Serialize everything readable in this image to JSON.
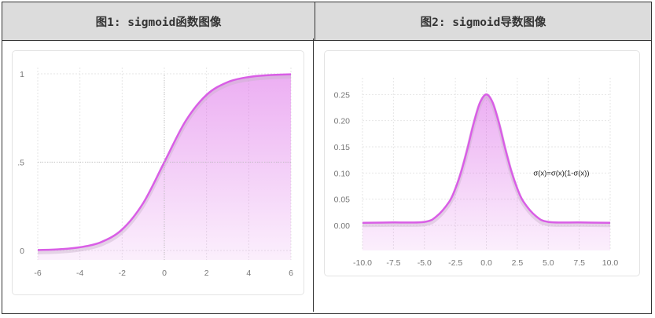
{
  "headers": {
    "left": "图1: sigmoid函数图像",
    "right": "图2: sigmoid导数图像"
  },
  "chart_data": [
    {
      "type": "area",
      "title": "图1: sigmoid函数图像",
      "x": [
        -6,
        -5,
        -4,
        -3,
        -2,
        -1,
        0,
        1,
        2,
        3,
        4,
        5,
        6
      ],
      "y": [
        0.0025,
        0.0067,
        0.018,
        0.047,
        0.119,
        0.269,
        0.5,
        0.731,
        0.881,
        0.953,
        0.982,
        0.993,
        0.9975
      ],
      "xticks": [
        "-6",
        "-4",
        "-2",
        "0",
        "2",
        "4",
        "6"
      ],
      "yticks": [
        "0",
        ".5",
        "1"
      ],
      "xlim": [
        -6,
        6
      ],
      "ylim": [
        0,
        1
      ],
      "grid": true,
      "color": "#d95ee6"
    },
    {
      "type": "area",
      "title": "图2: sigmoid导数图像",
      "x": [
        -10,
        -7.5,
        -5,
        -4,
        -3,
        -2.5,
        -2,
        -1.5,
        -1,
        -0.5,
        0,
        0.5,
        1,
        1.5,
        2,
        2.5,
        3,
        4,
        5,
        7.5,
        10
      ],
      "y": [
        0.005,
        0.0055,
        0.0066,
        0.0177,
        0.0452,
        0.0701,
        0.105,
        0.149,
        0.197,
        0.235,
        0.25,
        0.235,
        0.197,
        0.149,
        0.105,
        0.0701,
        0.0452,
        0.0177,
        0.0066,
        0.0055,
        0.005
      ],
      "xticks": [
        "-10.0",
        "-7.5",
        "-5.0",
        "-2.5",
        "0.0",
        "2.5",
        "5.0",
        "7.5",
        "10.0"
      ],
      "yticks": [
        "0.00",
        "0.05",
        "0.10",
        "0.15",
        "0.20",
        "0.25"
      ],
      "xlim": [
        -10,
        10
      ],
      "ylim": [
        0,
        0.27
      ],
      "annotation": "σ(x)=σ(x)(1-σ(x))",
      "grid": true,
      "color": "#d95ee6"
    }
  ]
}
